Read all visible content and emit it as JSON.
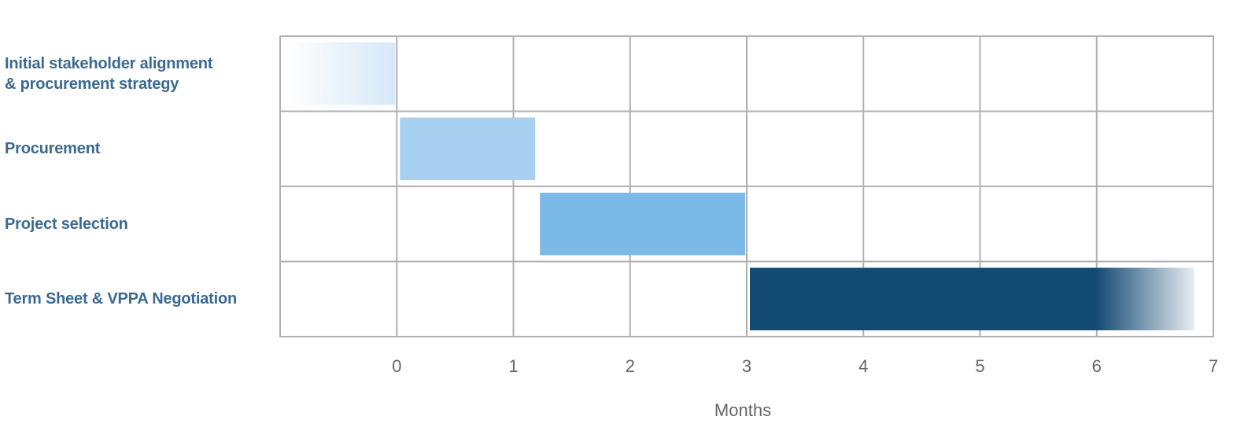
{
  "chart_data": {
    "type": "gantt",
    "x_label": "Months",
    "categories": [
      "Initial stakeholder alignment\n& procurement strategy",
      "Procurement",
      "Project selection",
      "Term Sheet & VPPA Negotiation"
    ],
    "series": [
      {
        "start": [
          -1,
          0,
          1.2,
          3
        ],
        "end": [
          0,
          1.2,
          3,
          6.85
        ],
        "colors": [
          "#d6e8f7",
          "#a8d1f1",
          "#7bb9e8",
          "#134a74"
        ],
        "fade": [
          "left",
          null,
          null,
          "right"
        ]
      }
    ],
    "xlim": [
      -1,
      7
    ],
    "xticks": [
      0,
      1,
      2,
      3,
      4,
      5,
      6,
      7
    ],
    "grid": true
  }
}
